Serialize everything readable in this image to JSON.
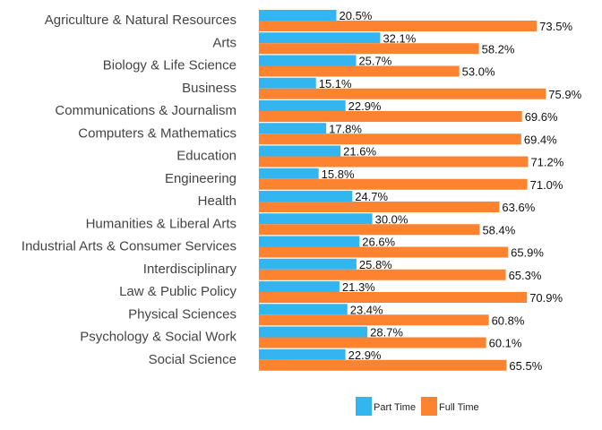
{
  "chart_data": {
    "type": "bar",
    "orientation": "horizontal",
    "categories": [
      "Agriculture & Natural Resources",
      "Arts",
      "Biology & Life Science",
      "Business",
      "Communications & Journalism",
      "Computers & Mathematics",
      "Education",
      "Engineering",
      "Health",
      "Humanities & Liberal Arts",
      "Industrial Arts & Consumer Services",
      "Interdisciplinary",
      "Law & Public Policy",
      "Physical Sciences",
      "Psychology & Social Work",
      "Social Science"
    ],
    "series": [
      {
        "name": "Part Time",
        "color": "#33b5f0",
        "values": [
          20.5,
          32.1,
          25.7,
          15.1,
          22.9,
          17.8,
          21.6,
          15.8,
          24.7,
          30.0,
          26.6,
          25.8,
          21.3,
          23.4,
          28.7,
          22.9
        ],
        "labels": [
          "20.5%",
          "32.1%",
          "25.7%",
          "15.1%",
          "22.9%",
          "17.8%",
          "21.6%",
          "15.8%",
          "24.7%",
          "30.0%",
          "26.6%",
          "25.8%",
          "21.3%",
          "23.4%",
          "28.7%",
          "22.9%"
        ]
      },
      {
        "name": "Full Time",
        "color": "#fd8331",
        "values": [
          73.5,
          58.2,
          53.0,
          75.9,
          69.6,
          69.4,
          71.2,
          71.0,
          63.6,
          58.4,
          65.9,
          65.3,
          70.9,
          60.8,
          60.1,
          65.5
        ],
        "labels": [
          "73.5%",
          "58.2%",
          "53.0%",
          "75.9%",
          "69.6%",
          "69.4%",
          "71.2%",
          "71.0%",
          "63.6%",
          "58.4%",
          "65.9%",
          "65.3%",
          "70.9%",
          "60.8%",
          "60.1%",
          "65.5%"
        ]
      }
    ],
    "xlim": [
      0,
      80
    ],
    "grid": false,
    "legend_position": "bottom"
  }
}
